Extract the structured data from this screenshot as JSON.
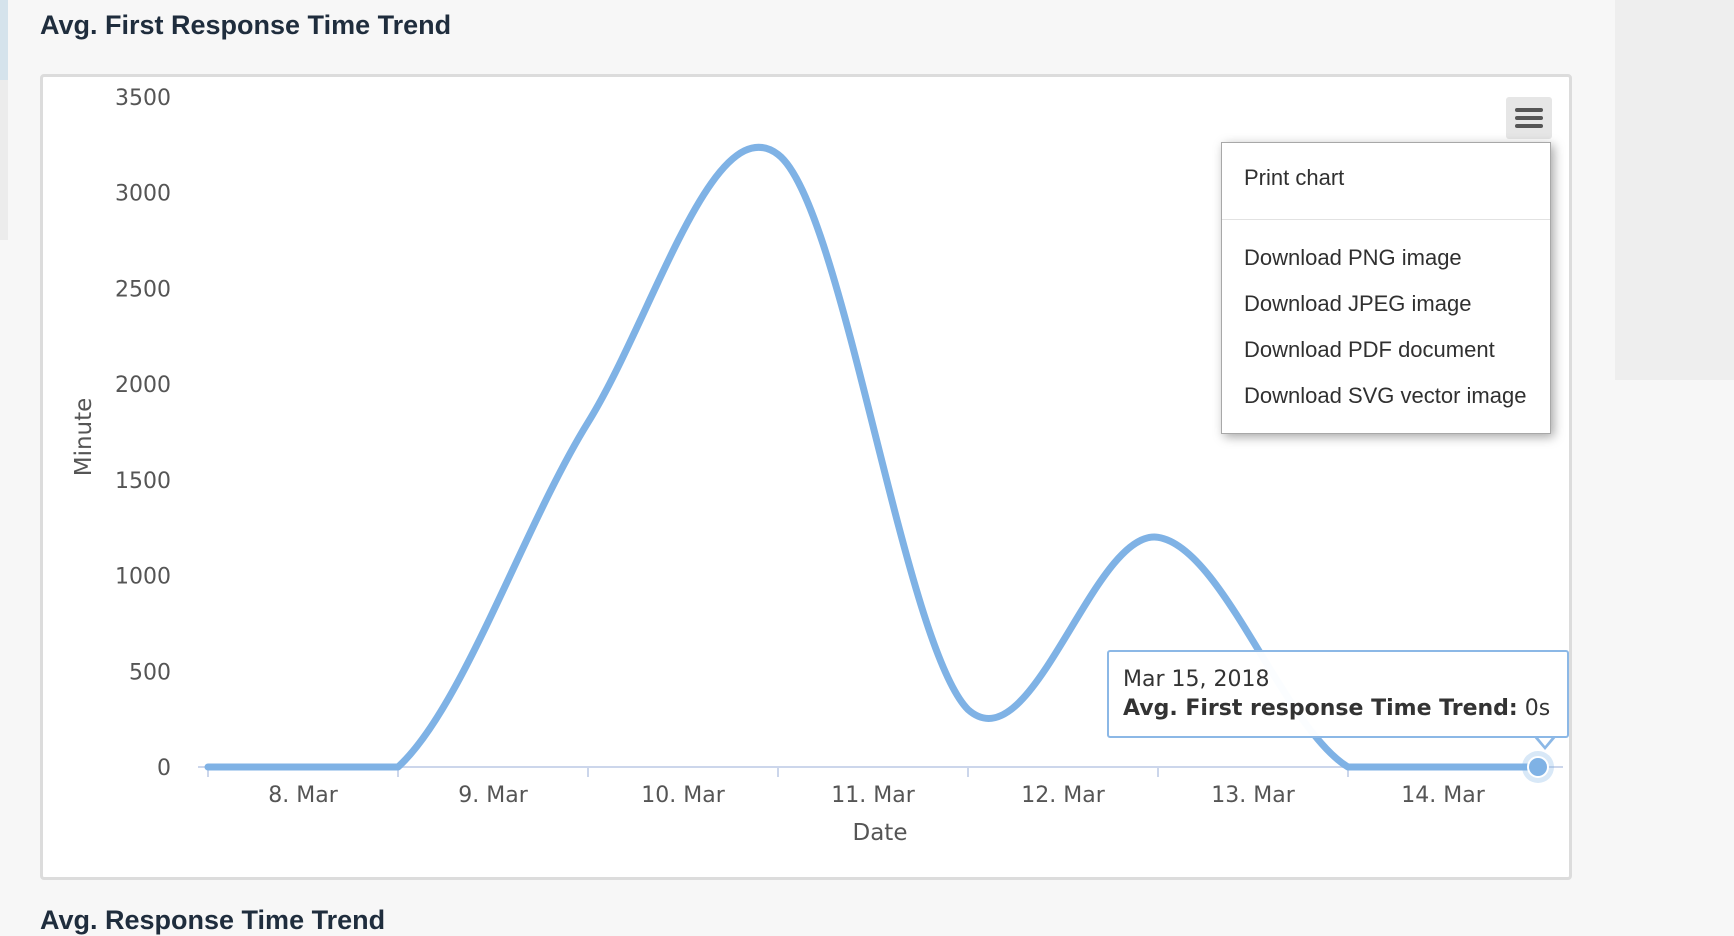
{
  "page": {
    "title": "Avg. First Response Time Trend",
    "next_title": "Avg. Response Time Trend"
  },
  "chart_menu": {
    "button_icon": "hamburger-menu-icon",
    "items": [
      "Print chart",
      "Download PNG image",
      "Download JPEG image",
      "Download PDF document",
      "Download SVG vector image"
    ]
  },
  "tooltip": {
    "date": "Mar 15, 2018",
    "series_label": "Avg. First response Time Trend:",
    "value": "0s"
  },
  "colors": {
    "line": "#7fb2e5",
    "title": "#1f2d3d",
    "tooltip_border": "#8cb8e6"
  },
  "chart_data": {
    "type": "line",
    "smooth": true,
    "xlabel": "Date",
    "ylabel": "Minute",
    "ylim": [
      0,
      3500
    ],
    "yticks": [
      0,
      500,
      1000,
      1500,
      2000,
      2500,
      3000,
      3500
    ],
    "xtick_labels": [
      "8. Mar",
      "9. Mar",
      "10. Mar",
      "11. Mar",
      "12. Mar",
      "13. Mar",
      "14. Mar"
    ],
    "grid": false,
    "legend": "none",
    "series": [
      {
        "dates": [
          "2018-03-08",
          "2018-03-09",
          "2018-03-10",
          "2018-03-11",
          "2018-03-12",
          "2018-03-13",
          "2018-03-14",
          "2018-03-15"
        ],
        "values": [
          0,
          0,
          1800,
          3200,
          300,
          1200,
          0,
          0
        ]
      }
    ],
    "highlighted_point": {
      "date": "2018-03-15",
      "value": 0
    }
  }
}
